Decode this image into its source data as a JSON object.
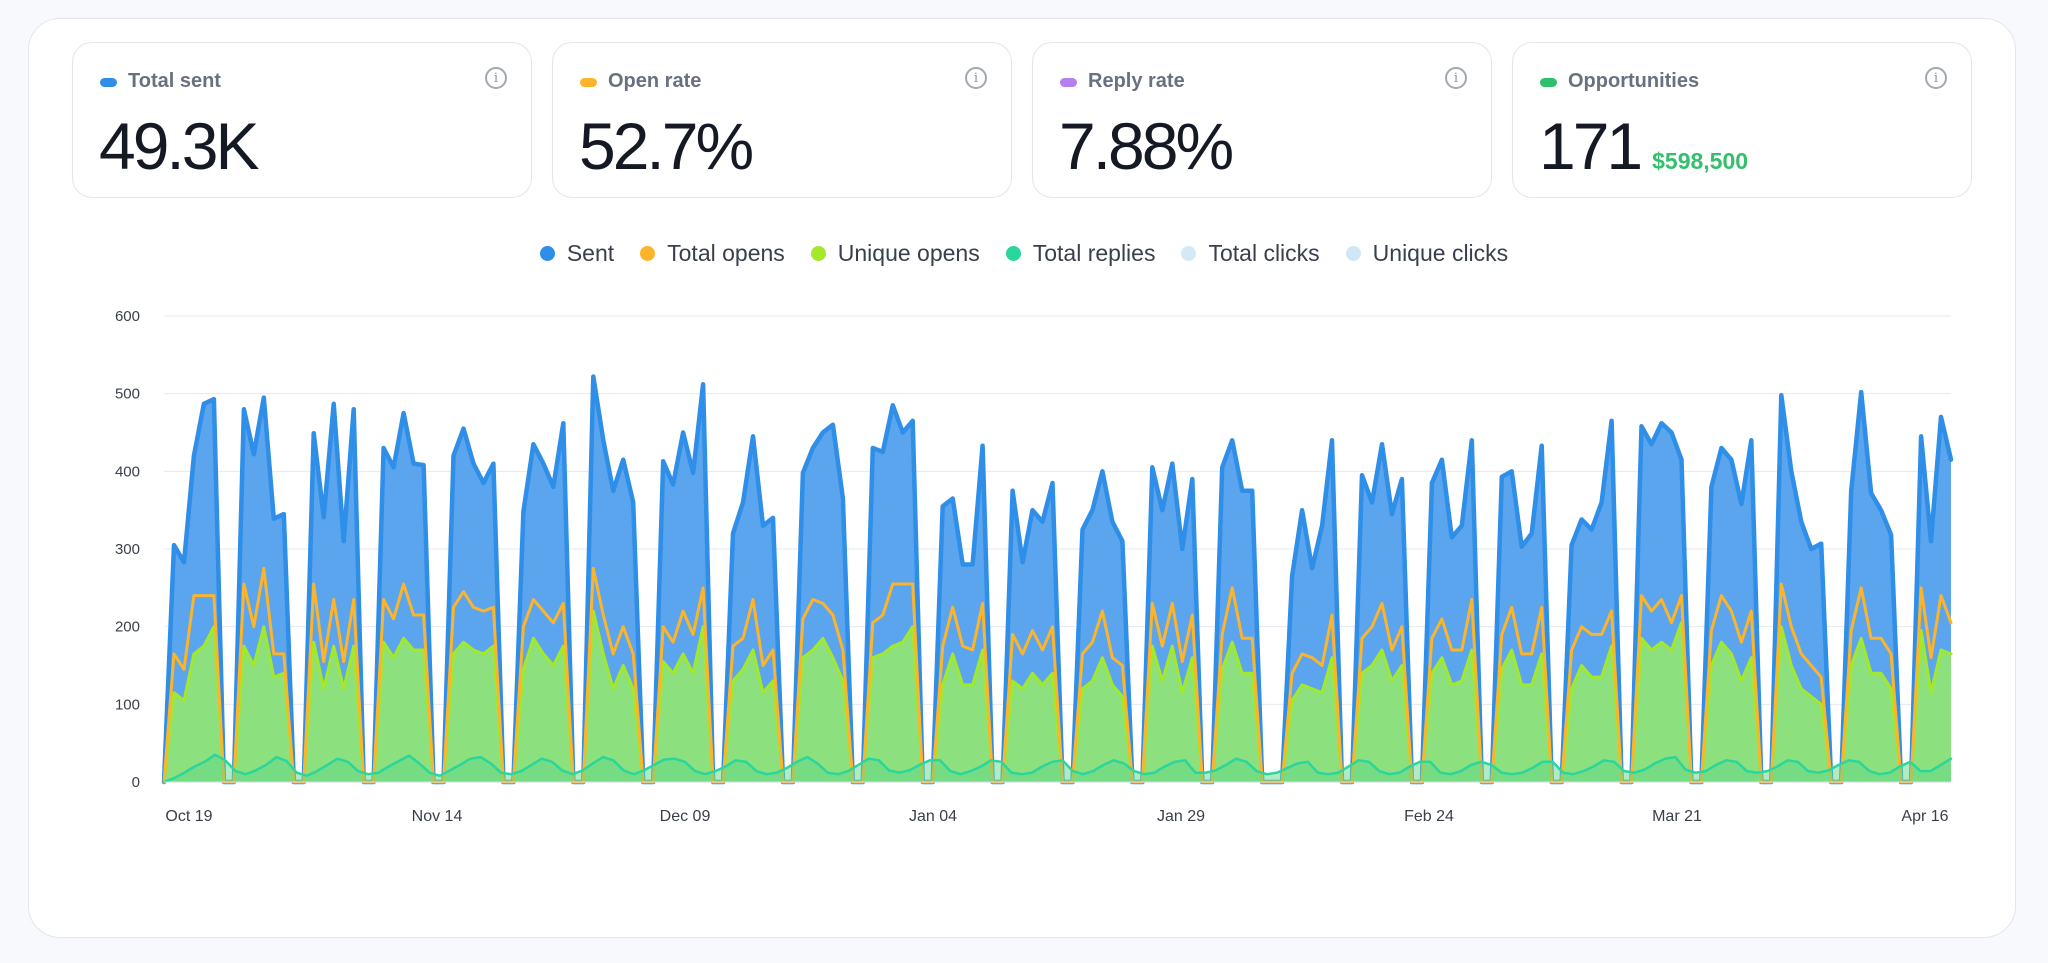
{
  "stats": [
    {
      "label": "Total sent",
      "value": "49.3K",
      "sub": "",
      "color": "#2e8ee8"
    },
    {
      "label": "Open rate",
      "value": "52.7%",
      "sub": "",
      "color": "#fbb42b"
    },
    {
      "label": "Reply rate",
      "value": "7.88%",
      "sub": "",
      "color": "#b47ff0"
    },
    {
      "label": "Opportunities",
      "value": "171",
      "sub": "$598,500",
      "color": "#2fc06b"
    }
  ],
  "info_glyph": "i",
  "chart_data": {
    "type": "area",
    "ylim": [
      0,
      600
    ],
    "y_ticks": [
      0,
      100,
      200,
      300,
      400,
      500,
      600
    ],
    "grid": true,
    "legend_position": "top-center",
    "x_tick_labels": [
      "Oct 19",
      "Nov 14",
      "Dec 09",
      "Jan 04",
      "Jan 29",
      "Feb 24",
      "Mar 21",
      "Apr 16"
    ],
    "x_start": "2023-10-19",
    "x_end": "2024-04-16",
    "series": [
      {
        "name": "Sent",
        "color": "#2e8ee8",
        "values": [
          0,
          305,
          283,
          420,
          487,
          493,
          0,
          0,
          480,
          422,
          495,
          339,
          345,
          0,
          0,
          449,
          341,
          487,
          310,
          480,
          0,
          0,
          430,
          405,
          475,
          410,
          408,
          0,
          0,
          420,
          455,
          410,
          385,
          410,
          0,
          0,
          348,
          435,
          410,
          380,
          462,
          0,
          0,
          522,
          440,
          375,
          415,
          360,
          0,
          0,
          413,
          383,
          450,
          398,
          512,
          0,
          0,
          320,
          360,
          445,
          330,
          340,
          0,
          0,
          398,
          430,
          450,
          460,
          365,
          0,
          0,
          430,
          425,
          485,
          450,
          465,
          0,
          0,
          355,
          365,
          280,
          280,
          433,
          0,
          0,
          375,
          283,
          350,
          335,
          385,
          0,
          0,
          325,
          350,
          400,
          335,
          310,
          0,
          0,
          405,
          350,
          410,
          300,
          390,
          0,
          0,
          405,
          440,
          375,
          375,
          0,
          0,
          0,
          265,
          350,
          275,
          330,
          440,
          0,
          0,
          395,
          360,
          435,
          345,
          390,
          0,
          0,
          385,
          415,
          315,
          330,
          440,
          0,
          0,
          393,
          400,
          303,
          320,
          433,
          0,
          0,
          305,
          338,
          325,
          360,
          465,
          0,
          0,
          458,
          435,
          462,
          450,
          415,
          0,
          0,
          380,
          430,
          415,
          358,
          440,
          0,
          0,
          498,
          400,
          335,
          300,
          307,
          0,
          0,
          375,
          502,
          372,
          350,
          318,
          0,
          0,
          445,
          310,
          470,
          415
        ],
        "total": 49300
      },
      {
        "name": "Total opens",
        "color": "#fbb42b",
        "values": [
          0,
          165,
          145,
          240,
          240,
          240,
          0,
          0,
          255,
          200,
          275,
          165,
          165,
          0,
          0,
          255,
          155,
          235,
          155,
          235,
          0,
          0,
          235,
          210,
          255,
          215,
          215,
          0,
          0,
          225,
          245,
          225,
          220,
          225,
          0,
          0,
          200,
          235,
          220,
          205,
          230,
          0,
          0,
          275,
          215,
          165,
          200,
          165,
          0,
          0,
          200,
          180,
          220,
          190,
          250,
          0,
          0,
          175,
          185,
          235,
          150,
          170,
          0,
          0,
          210,
          235,
          230,
          215,
          170,
          0,
          0,
          205,
          215,
          255,
          255,
          255,
          0,
          0,
          175,
          225,
          175,
          170,
          230,
          0,
          0,
          190,
          165,
          195,
          170,
          200,
          0,
          0,
          165,
          180,
          220,
          160,
          150,
          0,
          0,
          230,
          175,
          230,
          155,
          215,
          0,
          0,
          190,
          250,
          185,
          185,
          0,
          0,
          0,
          140,
          165,
          160,
          150,
          215,
          0,
          0,
          185,
          200,
          230,
          170,
          200,
          0,
          0,
          185,
          210,
          170,
          170,
          235,
          0,
          0,
          190,
          225,
          165,
          165,
          225,
          0,
          0,
          170,
          200,
          190,
          190,
          220,
          0,
          0,
          240,
          220,
          235,
          205,
          240,
          0,
          0,
          195,
          240,
          220,
          180,
          220,
          0,
          0,
          255,
          200,
          165,
          150,
          135,
          0,
          0,
          195,
          250,
          185,
          185,
          165,
          0,
          0,
          250,
          160,
          240,
          205
        ]
      },
      {
        "name": "Unique opens",
        "color": "#a3e82a",
        "values": [
          0,
          115,
          105,
          165,
          175,
          200,
          0,
          0,
          175,
          150,
          200,
          135,
          140,
          0,
          0,
          180,
          120,
          175,
          120,
          175,
          0,
          0,
          180,
          160,
          185,
          170,
          170,
          0,
          0,
          165,
          180,
          170,
          165,
          175,
          0,
          0,
          145,
          185,
          165,
          150,
          175,
          0,
          0,
          220,
          165,
          120,
          150,
          120,
          0,
          0,
          155,
          140,
          165,
          140,
          200,
          0,
          0,
          130,
          145,
          170,
          115,
          130,
          0,
          0,
          160,
          170,
          185,
          160,
          130,
          0,
          0,
          160,
          165,
          175,
          180,
          200,
          0,
          0,
          125,
          165,
          125,
          125,
          170,
          0,
          0,
          130,
          120,
          140,
          125,
          140,
          0,
          0,
          120,
          130,
          160,
          125,
          110,
          0,
          0,
          175,
          130,
          175,
          115,
          160,
          0,
          0,
          145,
          180,
          140,
          140,
          0,
          0,
          0,
          105,
          125,
          120,
          115,
          160,
          0,
          0,
          140,
          150,
          170,
          130,
          150,
          0,
          0,
          140,
          160,
          125,
          130,
          170,
          0,
          0,
          145,
          170,
          125,
          125,
          165,
          0,
          0,
          120,
          150,
          135,
          135,
          175,
          0,
          0,
          185,
          170,
          180,
          170,
          205,
          0,
          0,
          150,
          180,
          165,
          130,
          160,
          0,
          0,
          200,
          150,
          120,
          110,
          100,
          0,
          0,
          150,
          185,
          140,
          140,
          120,
          0,
          0,
          195,
          115,
          170,
          165
        ]
      },
      {
        "name": "Total replies",
        "color": "#2ad69b",
        "values": [
          0,
          5,
          12,
          20,
          26,
          35,
          28,
          14,
          10,
          15,
          22,
          32,
          27,
          12,
          8,
          14,
          22,
          30,
          26,
          14,
          10,
          12,
          20,
          27,
          34,
          24,
          12,
          8,
          15,
          22,
          30,
          32,
          24,
          12,
          10,
          14,
          22,
          30,
          26,
          15,
          10,
          15,
          24,
          32,
          28,
          15,
          10,
          15,
          22,
          29,
          30,
          26,
          14,
          10,
          14,
          20,
          28,
          26,
          14,
          10,
          12,
          18,
          26,
          32,
          24,
          12,
          10,
          14,
          22,
          30,
          28,
          15,
          12,
          15,
          22,
          28,
          28,
          14,
          10,
          14,
          20,
          28,
          26,
          12,
          10,
          12,
          20,
          26,
          28,
          14,
          10,
          14,
          22,
          28,
          24,
          14,
          10,
          12,
          20,
          26,
          28,
          12,
          12,
          15,
          22,
          30,
          26,
          14,
          10,
          12,
          18,
          24,
          26,
          12,
          10,
          12,
          20,
          28,
          26,
          14,
          10,
          12,
          20,
          26,
          26,
          12,
          10,
          14,
          22,
          26,
          22,
          12,
          10,
          12,
          18,
          26,
          26,
          12,
          10,
          14,
          20,
          28,
          26,
          14,
          12,
          16,
          24,
          30,
          32,
          16,
          12,
          14,
          22,
          28,
          26,
          14,
          12,
          14,
          20,
          28,
          26,
          14,
          12,
          15,
          22,
          28,
          26,
          14,
          10,
          12,
          20,
          26,
          14,
          14,
          22,
          30
        ]
      },
      {
        "name": "Total clicks",
        "color": "#d4e9f8",
        "values": []
      },
      {
        "name": "Unique clicks",
        "color": "#cfe7f5",
        "values": []
      }
    ]
  }
}
